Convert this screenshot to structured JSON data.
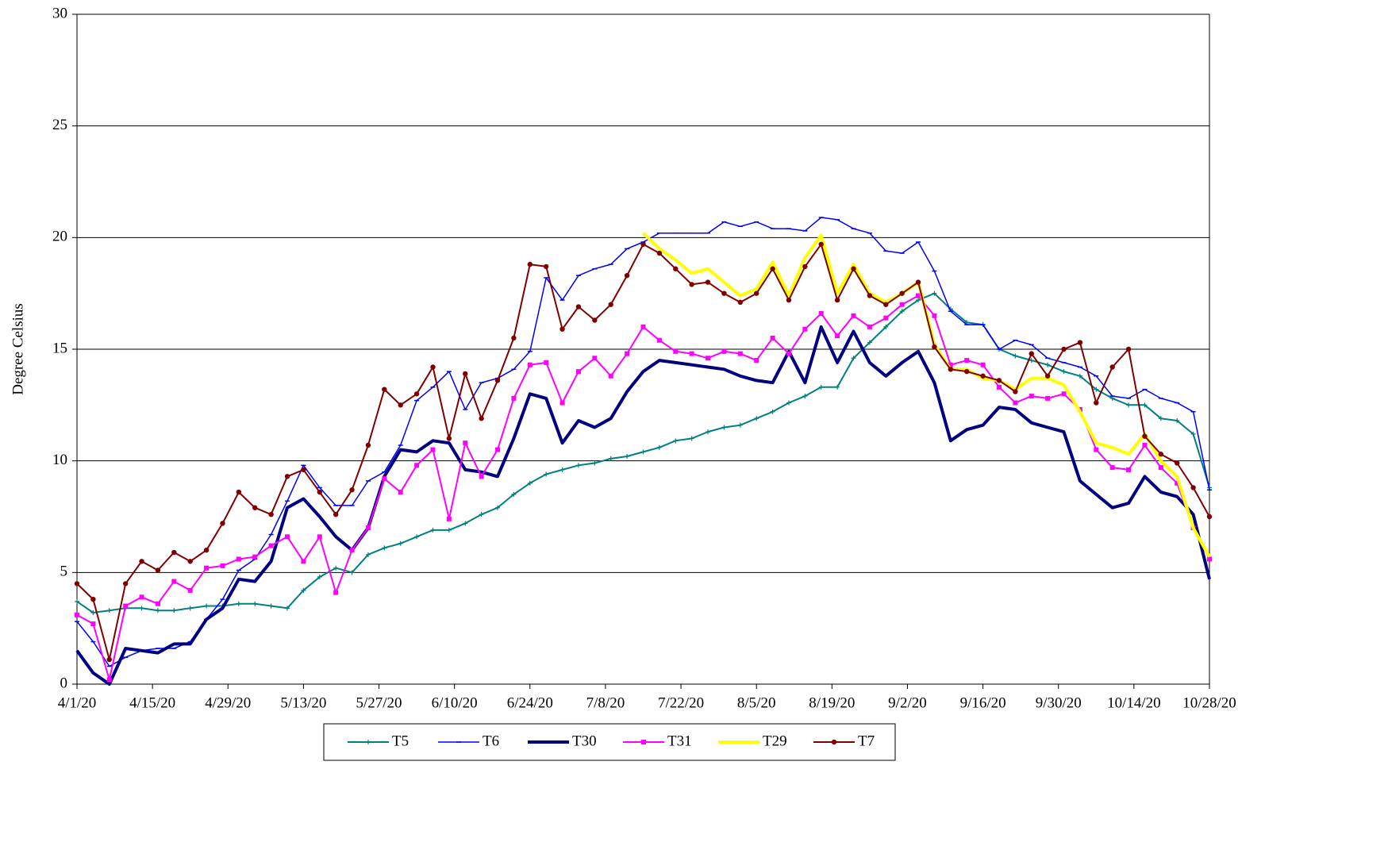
{
  "chart_data": {
    "type": "line",
    "y_label": "Degree Celsius",
    "ylim": [
      0,
      30
    ],
    "yticks": [
      0,
      5,
      10,
      15,
      20,
      25,
      30
    ],
    "grid": true,
    "xlim": [
      "4/1/20",
      "10/28/20"
    ],
    "xticks": [
      "4/1/20",
      "4/15/20",
      "4/29/20",
      "5/13/20",
      "5/27/20",
      "6/10/20",
      "6/24/20",
      "7/8/20",
      "7/22/20",
      "8/5/20",
      "8/19/20",
      "9/2/20",
      "9/16/20",
      "9/30/20",
      "10/14/20",
      "10/28/20"
    ],
    "legend": "bottom",
    "x": [
      "4/1/20",
      "4/4/20",
      "4/7/20",
      "4/10/20",
      "4/13/20",
      "4/16/20",
      "4/19/20",
      "4/22/20",
      "4/25/20",
      "4/28/20",
      "5/1/20",
      "5/4/20",
      "5/7/20",
      "5/10/20",
      "5/13/20",
      "5/16/20",
      "5/19/20",
      "5/22/20",
      "5/25/20",
      "5/28/20",
      "5/31/20",
      "6/3/20",
      "6/6/20",
      "6/9/20",
      "6/12/20",
      "6/15/20",
      "6/18/20",
      "6/21/20",
      "6/24/20",
      "6/27/20",
      "6/30/20",
      "7/3/20",
      "7/6/20",
      "7/9/20",
      "7/12/20",
      "7/15/20",
      "7/18/20",
      "7/21/20",
      "7/24/20",
      "7/27/20",
      "7/30/20",
      "8/2/20",
      "8/5/20",
      "8/8/20",
      "8/11/20",
      "8/14/20",
      "8/17/20",
      "8/20/20",
      "8/23/20",
      "8/26/20",
      "8/29/20",
      "9/1/20",
      "9/4/20",
      "9/7/20",
      "9/10/20",
      "9/13/20",
      "9/16/20",
      "9/19/20",
      "9/22/20",
      "9/25/20",
      "9/28/20",
      "10/1/20",
      "10/4/20",
      "10/7/20",
      "10/10/20",
      "10/13/20",
      "10/16/20",
      "10/19/20",
      "10/22/20",
      "10/25/20",
      "10/28/20"
    ],
    "series": [
      {
        "name": "T5",
        "color": "#008080",
        "width": 2,
        "marker": "plus",
        "values": [
          3.7,
          3.2,
          3.3,
          3.4,
          3.4,
          3.3,
          3.3,
          3.4,
          3.5,
          3.5,
          3.6,
          3.6,
          3.5,
          3.4,
          4.2,
          4.8,
          5.2,
          5.0,
          5.8,
          6.1,
          6.3,
          6.6,
          6.9,
          6.9,
          7.2,
          7.6,
          7.9,
          8.5,
          9.0,
          9.4,
          9.6,
          9.8,
          9.9,
          10.1,
          10.2,
          10.4,
          10.6,
          10.9,
          11.0,
          11.3,
          11.5,
          11.6,
          11.9,
          12.2,
          12.6,
          12.9,
          13.3,
          13.3,
          14.6,
          15.3,
          16.0,
          16.7,
          17.2,
          17.5,
          16.8,
          16.2,
          16.1,
          15.0,
          14.7,
          14.5,
          14.3,
          14.0,
          13.8,
          13.2,
          12.8,
          12.5,
          12.5,
          11.9,
          11.8,
          11.2,
          8.8
        ]
      },
      {
        "name": "T6",
        "color": "#0000ff",
        "width": 1.5,
        "marker": "dash",
        "values": [
          2.8,
          1.9,
          0.8,
          1.2,
          1.5,
          1.6,
          1.6,
          1.9,
          2.9,
          3.8,
          5.1,
          5.6,
          6.7,
          8.2,
          9.8,
          8.8,
          8.0,
          8.0,
          9.1,
          9.5,
          10.7,
          12.7,
          13.3,
          14.0,
          12.3,
          13.5,
          13.7,
          14.1,
          14.9,
          18.2,
          17.2,
          18.3,
          18.6,
          18.8,
          19.5,
          19.8,
          20.2,
          20.2,
          20.2,
          20.2,
          20.7,
          20.5,
          20.7,
          20.4,
          20.4,
          20.3,
          20.9,
          20.8,
          20.4,
          20.2,
          19.4,
          19.3,
          19.8,
          18.5,
          16.7,
          16.1,
          16.1,
          15.0,
          15.4,
          15.2,
          14.6,
          14.4,
          14.2,
          13.8,
          12.9,
          12.8,
          13.2,
          12.8,
          12.6,
          12.2,
          8.7
        ]
      },
      {
        "name": "T30",
        "color": "#000080",
        "width": 4,
        "marker": "none",
        "values": [
          1.5,
          0.5,
          0.0,
          1.6,
          1.5,
          1.4,
          1.8,
          1.8,
          2.9,
          3.4,
          4.7,
          4.6,
          5.5,
          7.9,
          8.3,
          7.5,
          6.6,
          6.0,
          7.0,
          9.3,
          10.5,
          10.4,
          10.9,
          10.8,
          9.6,
          9.5,
          9.3,
          11.0,
          13.0,
          12.8,
          10.8,
          11.8,
          11.5,
          11.9,
          13.1,
          14.0,
          14.5,
          14.4,
          14.3,
          14.2,
          14.1,
          13.8,
          13.6,
          13.5,
          14.9,
          13.5,
          16.0,
          14.4,
          15.8,
          14.4,
          13.8,
          14.4,
          14.9,
          13.5,
          10.9,
          11.4,
          11.6,
          12.4,
          12.3,
          11.7,
          11.5,
          11.3,
          9.1,
          8.5,
          7.9,
          8.1,
          9.3,
          8.6,
          8.4,
          7.6,
          4.7
        ]
      },
      {
        "name": "T31",
        "color": "#ff00ff",
        "width": 2,
        "marker": "square",
        "values": [
          3.1,
          2.7,
          0.2,
          3.5,
          3.9,
          3.6,
          4.6,
          4.2,
          5.2,
          5.3,
          5.6,
          5.7,
          6.2,
          6.6,
          5.5,
          6.6,
          4.1,
          6.0,
          7.0,
          9.2,
          8.6,
          9.8,
          10.5,
          7.4,
          10.8,
          9.3,
          10.5,
          12.8,
          14.3,
          14.4,
          12.6,
          14.0,
          14.6,
          13.8,
          14.8,
          16.0,
          15.4,
          14.9,
          14.8,
          14.6,
          14.9,
          14.8,
          14.5,
          15.5,
          14.8,
          15.9,
          16.6,
          15.6,
          16.5,
          16.0,
          16.4,
          17.0,
          17.4,
          16.5,
          14.3,
          14.5,
          14.3,
          13.3,
          12.6,
          12.9,
          12.8,
          13.0,
          12.3,
          10.5,
          9.7,
          9.6,
          10.7,
          9.7,
          9.0,
          7.0,
          5.6
        ]
      },
      {
        "name": "T29",
        "color": "#ffff00",
        "width": 4,
        "marker": "none",
        "values": [
          null,
          null,
          null,
          null,
          null,
          null,
          null,
          null,
          null,
          null,
          null,
          null,
          null,
          null,
          null,
          null,
          null,
          null,
          null,
          null,
          null,
          null,
          null,
          null,
          null,
          null,
          null,
          null,
          null,
          null,
          null,
          null,
          null,
          null,
          null,
          20.2,
          19.5,
          19.0,
          18.4,
          18.6,
          18.0,
          17.4,
          17.7,
          18.9,
          17.4,
          19.1,
          20.1,
          17.5,
          18.8,
          17.5,
          17.1,
          17.5,
          18.0,
          15.2,
          14.1,
          14.1,
          13.7,
          13.6,
          13.2,
          13.7,
          13.7,
          13.4,
          12.2,
          10.8,
          10.6,
          10.3,
          11.2,
          10.0,
          9.3,
          7.0,
          5.7
        ]
      },
      {
        "name": "T7",
        "color": "#800000",
        "width": 2,
        "marker": "circle",
        "values": [
          4.5,
          3.8,
          1.1,
          4.5,
          5.5,
          5.1,
          5.9,
          5.5,
          6.0,
          7.2,
          8.6,
          7.9,
          7.6,
          9.3,
          9.6,
          8.6,
          7.6,
          8.7,
          10.7,
          13.2,
          12.5,
          13.0,
          14.2,
          11.0,
          13.9,
          11.9,
          13.6,
          15.5,
          18.8,
          18.7,
          15.9,
          16.9,
          16.3,
          17.0,
          18.3,
          19.7,
          19.3,
          18.6,
          17.9,
          18.0,
          17.5,
          17.1,
          17.5,
          18.6,
          17.2,
          18.7,
          19.7,
          17.2,
          18.6,
          17.4,
          17.0,
          17.5,
          18.0,
          15.1,
          14.1,
          14.0,
          13.8,
          13.6,
          13.1,
          14.8,
          13.8,
          15.0,
          15.3,
          12.6,
          14.2,
          15.0,
          11.1,
          10.3,
          9.9,
          8.8,
          7.5
        ]
      }
    ]
  }
}
